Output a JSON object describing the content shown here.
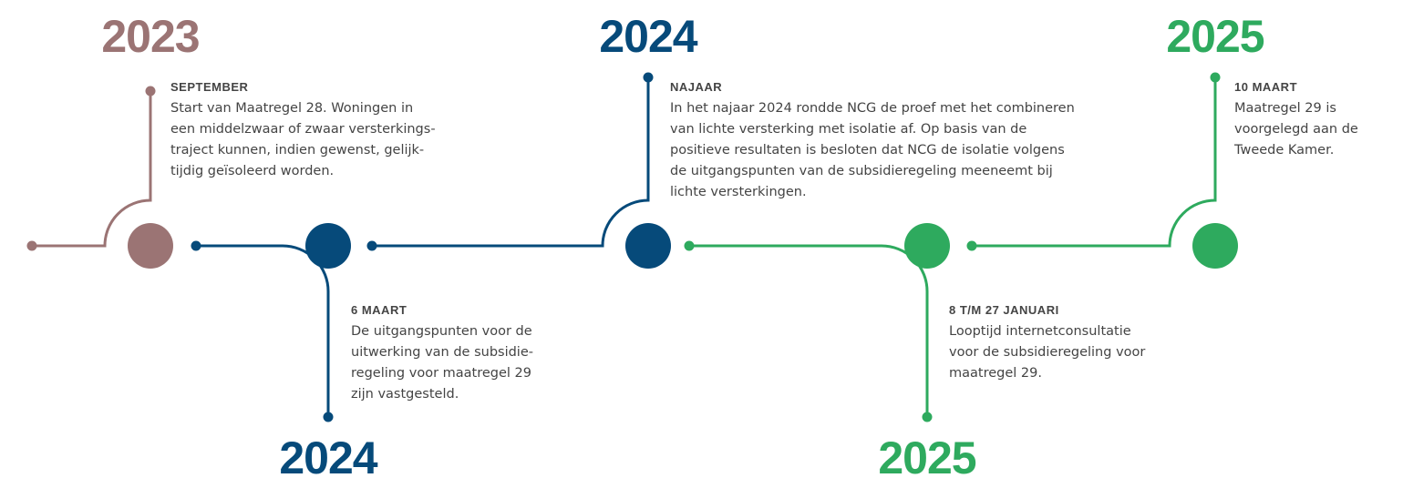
{
  "events": [
    {
      "year": "2023",
      "label": "SEPTEMBER",
      "color": "#9b7474",
      "lines": [
        "Start van Maatregel 28. Woningen in",
        "een middelzwaar of zwaar versterkings-",
        "traject kunnen, indien gewenst, gelijk-",
        "tijdig geïsoleerd worden."
      ]
    },
    {
      "year": "2024",
      "label": "6 MAART",
      "color": "#064a7a",
      "lines": [
        "De uitgangspunten voor de",
        "uitwerking van de subsidie-",
        "regeling voor maatregel 29",
        "zijn vastgesteld."
      ]
    },
    {
      "year": "2024",
      "label": "NAJAAR",
      "color": "#064a7a",
      "lines": [
        "In het najaar 2024 rondde NCG de proef met het combineren",
        "van lichte versterking met isolatie af. Op basis van de",
        "positieve resultaten is besloten dat NCG de isolatie volgens",
        "de uitgangspunten van de subsidieregeling meeneemt bij",
        "lichte versterkingen."
      ]
    },
    {
      "year": "2025",
      "label": "8 T/M 27 JANUARI",
      "color": "#2eaa5e",
      "lines": [
        "Looptijd internetconsultatie",
        "voor de subsidieregeling voor",
        "maatregel 29."
      ]
    },
    {
      "year": "2025",
      "label": "10 MAART",
      "color": "#2eaa5e",
      "lines": [
        "Maatregel 29 is",
        "voorgelegd aan de",
        "Tweede Kamer."
      ]
    }
  ]
}
